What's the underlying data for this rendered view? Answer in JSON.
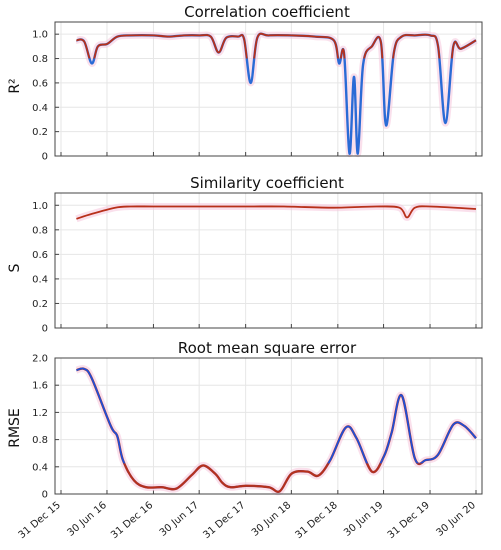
{
  "colors": {
    "blue": "#1f4fd6",
    "lightblue": "#3b82d0",
    "red": "#b8301a",
    "pinkshade": "#f6c7dc",
    "grid": "#e6e6e6",
    "frame": "#444444"
  },
  "chart_data": [
    {
      "type": "line",
      "title": "Correlation coefficient",
      "ylabel": "R²",
      "ylim": [
        0,
        1.1
      ],
      "yticks": [
        0,
        0.2,
        0.4,
        0.6,
        0.8,
        1.0
      ],
      "ytick_labels": [
        "0",
        "0.2",
        "0.4",
        "0.6",
        "0.8",
        "1.0"
      ],
      "xlim": [
        "2015-12-31",
        "2020-06-30"
      ],
      "grid": true,
      "series": [
        {
          "color": "#b8301a",
          "highlight": "#2a6bd6",
          "points": [
            [
              "2016-03-01",
              0.95
            ],
            [
              "2016-04-01",
              0.94
            ],
            [
              "2016-05-01",
              0.76
            ],
            [
              "2016-05-25",
              0.9
            ],
            [
              "2016-07-01",
              0.92
            ],
            [
              "2016-08-10",
              0.98
            ],
            [
              "2016-10-01",
              0.99
            ],
            [
              "2017-01-01",
              0.99
            ],
            [
              "2017-03-01",
              0.98
            ],
            [
              "2017-05-01",
              0.99
            ],
            [
              "2017-07-01",
              0.99
            ],
            [
              "2017-08-15",
              0.98
            ],
            [
              "2017-09-15",
              0.85
            ],
            [
              "2017-10-15",
              0.97
            ],
            [
              "2017-12-01",
              0.98
            ],
            [
              "2017-12-25",
              0.96
            ],
            [
              "2018-01-20",
              0.6
            ],
            [
              "2018-02-15",
              0.97
            ],
            [
              "2018-04-01",
              0.99
            ],
            [
              "2018-07-01",
              0.99
            ],
            [
              "2018-10-01",
              0.98
            ],
            [
              "2018-12-15",
              0.95
            ],
            [
              "2019-01-05",
              0.76
            ],
            [
              "2019-01-25",
              0.84
            ],
            [
              "2019-02-15",
              0.02
            ],
            [
              "2019-03-05",
              0.65
            ],
            [
              "2019-03-20",
              0.02
            ],
            [
              "2019-04-10",
              0.75
            ],
            [
              "2019-05-15",
              0.9
            ],
            [
              "2019-06-20",
              0.93
            ],
            [
              "2019-07-10",
              0.25
            ],
            [
              "2019-08-10",
              0.85
            ],
            [
              "2019-09-10",
              0.98
            ],
            [
              "2019-11-01",
              0.99
            ],
            [
              "2020-01-01",
              0.99
            ],
            [
              "2020-02-01",
              0.9
            ],
            [
              "2020-03-01",
              0.27
            ],
            [
              "2020-04-01",
              0.9
            ],
            [
              "2020-05-01",
              0.88
            ],
            [
              "2020-06-30",
              0.95
            ]
          ]
        }
      ]
    },
    {
      "type": "line",
      "title": "Similarity coefficient",
      "ylabel": "S",
      "ylim": [
        0,
        1.1
      ],
      "yticks": [
        0,
        0.2,
        0.4,
        0.6,
        0.8,
        1.0
      ],
      "ytick_labels": [
        "0",
        "0.2",
        "0.4",
        "0.6",
        "0.8",
        "1.0"
      ],
      "xlim": [
        "2015-12-31",
        "2020-06-30"
      ],
      "grid": true,
      "series": [
        {
          "color": "#b8301a",
          "points": [
            [
              "2016-03-01",
              0.89
            ],
            [
              "2016-05-01",
              0.93
            ],
            [
              "2016-08-01",
              0.98
            ],
            [
              "2016-10-01",
              0.99
            ],
            [
              "2017-01-01",
              0.99
            ],
            [
              "2017-06-01",
              0.99
            ],
            [
              "2018-01-01",
              0.99
            ],
            [
              "2018-06-01",
              0.99
            ],
            [
              "2018-12-15",
              0.98
            ],
            [
              "2019-06-01",
              0.99
            ],
            [
              "2019-09-01",
              0.98
            ],
            [
              "2019-10-01",
              0.9
            ],
            [
              "2019-11-01",
              0.98
            ],
            [
              "2020-01-01",
              0.99
            ],
            [
              "2020-06-30",
              0.97
            ]
          ]
        }
      ]
    },
    {
      "type": "line",
      "title": "Root mean square error",
      "ylabel": "RMSE",
      "ylim": [
        0,
        2.0
      ],
      "yticks": [
        0,
        0.4,
        0.8,
        1.2,
        1.6,
        2.0
      ],
      "ytick_labels": [
        "0",
        "0.4",
        "0.8",
        "1.2",
        "1.6",
        "2.0"
      ],
      "xlim": [
        "2015-12-31",
        "2020-06-30"
      ],
      "xtick_labels": [
        "31 Dec 15",
        "30 Jun 16",
        "31 Dec 16",
        "30 Jun 17",
        "31 Dec 17",
        "30 Jun 18",
        "31 Dec 18",
        "30 Jun 19",
        "31 Dec 19",
        "30 Jun 20"
      ],
      "xtick_dates": [
        "2015-12-31",
        "2016-06-30",
        "2016-12-31",
        "2017-06-30",
        "2017-12-31",
        "2018-06-30",
        "2018-12-31",
        "2019-06-30",
        "2019-12-31",
        "2020-06-30"
      ],
      "grid": true,
      "series": [
        {
          "color": "#1f4fd6",
          "highlight": "#b8301a",
          "points": [
            [
              "2016-03-01",
              1.82
            ],
            [
              "2016-04-01",
              1.84
            ],
            [
              "2016-05-01",
              1.7
            ],
            [
              "2016-07-15",
              1.0
            ],
            [
              "2016-08-10",
              0.85
            ],
            [
              "2016-09-01",
              0.5
            ],
            [
              "2016-10-15",
              0.2
            ],
            [
              "2016-12-01",
              0.1
            ],
            [
              "2017-02-01",
              0.1
            ],
            [
              "2017-04-01",
              0.08
            ],
            [
              "2017-06-01",
              0.28
            ],
            [
              "2017-07-15",
              0.42
            ],
            [
              "2017-09-01",
              0.3
            ],
            [
              "2017-10-01",
              0.16
            ],
            [
              "2017-11-01",
              0.1
            ],
            [
              "2018-01-01",
              0.12
            ],
            [
              "2018-04-01",
              0.1
            ],
            [
              "2018-05-15",
              0.04
            ],
            [
              "2018-07-01",
              0.3
            ],
            [
              "2018-09-01",
              0.33
            ],
            [
              "2018-10-15",
              0.27
            ],
            [
              "2018-12-01",
              0.5
            ],
            [
              "2019-02-01",
              0.98
            ],
            [
              "2019-03-15",
              0.82
            ],
            [
              "2019-05-15",
              0.33
            ],
            [
              "2019-07-01",
              0.55
            ],
            [
              "2019-08-01",
              0.9
            ],
            [
              "2019-09-10",
              1.45
            ],
            [
              "2019-11-01",
              0.52
            ],
            [
              "2019-12-15",
              0.5
            ],
            [
              "2020-02-01",
              0.58
            ],
            [
              "2020-04-01",
              1.02
            ],
            [
              "2020-05-15",
              1.0
            ],
            [
              "2020-06-30",
              0.82
            ]
          ]
        }
      ]
    }
  ]
}
